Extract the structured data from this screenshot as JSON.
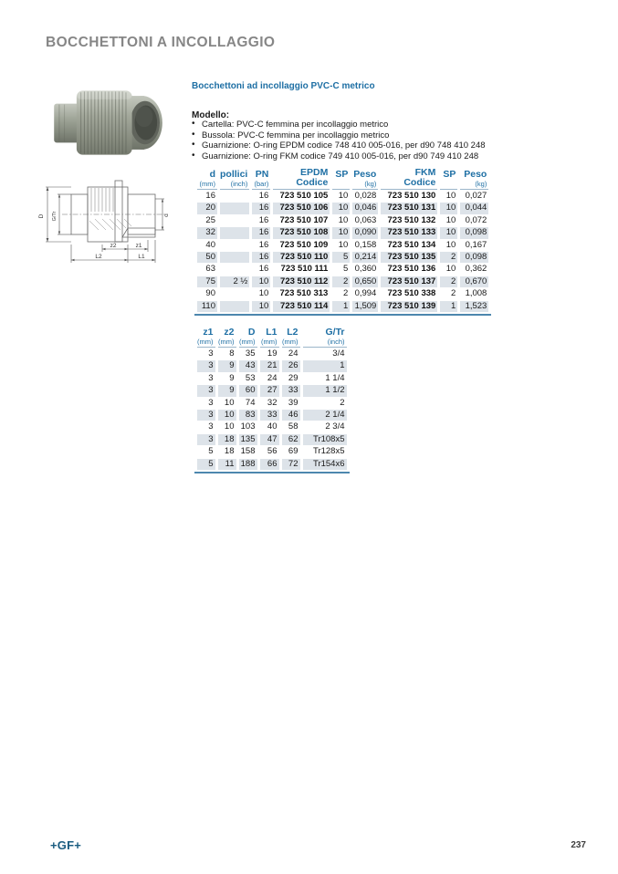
{
  "page": {
    "title": "BOCCHETTONI A INCOLLAGGIO",
    "footer_logo": "+GF+",
    "page_number": "237"
  },
  "colors": {
    "accent_blue": "#1e6fa4",
    "row_shade": "#dde3e9",
    "table_bottom_line": "#4d87ae",
    "title_gray": "#868686",
    "logo_blue": "#1a5c80"
  },
  "intro": {
    "subtitle": "Bocchettoni ad incollaggio PVC-C metrico",
    "model_label": "Modello:",
    "bullets": [
      "Cartella: PVC-C femmina per incollaggio metrico",
      "Bussola: PVC-C femmina per incollaggio metrico",
      "Guarnizione: O-ring EPDM codice 748 410 005-016, per d90 748 410 248",
      "Guarnizione: O-ring FKM codice 749 410 005-016, per d90 749 410 248"
    ]
  },
  "table1": {
    "headers": [
      {
        "label": "d",
        "unit": "(mm)"
      },
      {
        "label": "pollici",
        "unit": "(inch)"
      },
      {
        "label": "PN",
        "unit": "(bar)"
      },
      {
        "label": "EPDM",
        "unit": "Codice"
      },
      {
        "label": "SP",
        "unit": ""
      },
      {
        "label": "Peso",
        "unit": "(kg)"
      },
      {
        "label": "FKM",
        "unit": "Codice"
      },
      {
        "label": "SP",
        "unit": ""
      },
      {
        "label": "Peso",
        "unit": "(kg)"
      }
    ],
    "rows": [
      [
        "16",
        "",
        "16",
        "723 510 105",
        "10",
        "0,028",
        "723 510 130",
        "10",
        "0,027"
      ],
      [
        "20",
        "",
        "16",
        "723 510 106",
        "10",
        "0,046",
        "723 510 131",
        "10",
        "0,044"
      ],
      [
        "25",
        "",
        "16",
        "723 510 107",
        "10",
        "0,063",
        "723 510 132",
        "10",
        "0,072"
      ],
      [
        "32",
        "",
        "16",
        "723 510 108",
        "10",
        "0,090",
        "723 510 133",
        "10",
        "0,098"
      ],
      [
        "40",
        "",
        "16",
        "723 510 109",
        "10",
        "0,158",
        "723 510 134",
        "10",
        "0,167"
      ],
      [
        "50",
        "",
        "16",
        "723 510 110",
        "5",
        "0,214",
        "723 510 135",
        "2",
        "0,098"
      ],
      [
        "63",
        "",
        "16",
        "723 510 111",
        "5",
        "0,360",
        "723 510 136",
        "10",
        "0,362"
      ],
      [
        "75",
        "2 ½",
        "10",
        "723 510 112",
        "2",
        "0,650",
        "723 510 137",
        "2",
        "0,670"
      ],
      [
        "90",
        "",
        "10",
        "723 510 313",
        "2",
        "0,994",
        "723 510 338",
        "2",
        "1,008"
      ],
      [
        "110",
        "",
        "10",
        "723 510 114",
        "1",
        "1,509",
        "723 510 139",
        "1",
        "1,523"
      ]
    ]
  },
  "table2": {
    "headers": [
      {
        "label": "z1",
        "unit": "(mm)"
      },
      {
        "label": "z2",
        "unit": "(mm)"
      },
      {
        "label": "D",
        "unit": "(mm)"
      },
      {
        "label": "L1",
        "unit": "(mm)"
      },
      {
        "label": "L2",
        "unit": "(mm)"
      },
      {
        "label": "G/Tr",
        "unit": "(inch)"
      }
    ],
    "rows": [
      [
        "3",
        "8",
        "35",
        "19",
        "24",
        "3/4"
      ],
      [
        "3",
        "9",
        "43",
        "21",
        "26",
        "1"
      ],
      [
        "3",
        "9",
        "53",
        "24",
        "29",
        "1 1/4"
      ],
      [
        "3",
        "9",
        "60",
        "27",
        "33",
        "1 1/2"
      ],
      [
        "3",
        "10",
        "74",
        "32",
        "39",
        "2"
      ],
      [
        "3",
        "10",
        "83",
        "33",
        "46",
        "2 1/4"
      ],
      [
        "3",
        "10",
        "103",
        "40",
        "58",
        "2 3/4"
      ],
      [
        "3",
        "18",
        "135",
        "47",
        "62",
        "Tr108x5"
      ],
      [
        "5",
        "18",
        "158",
        "56",
        "69",
        "Tr128x5"
      ],
      [
        "5",
        "11",
        "188",
        "66",
        "72",
        "Tr154x6"
      ]
    ]
  },
  "drawing": {
    "labels": {
      "D": "D",
      "GTr": "G/Tr",
      "d": "d",
      "z2": "z2",
      "z1": "z1",
      "L2": "L2",
      "L1": "L1"
    }
  }
}
